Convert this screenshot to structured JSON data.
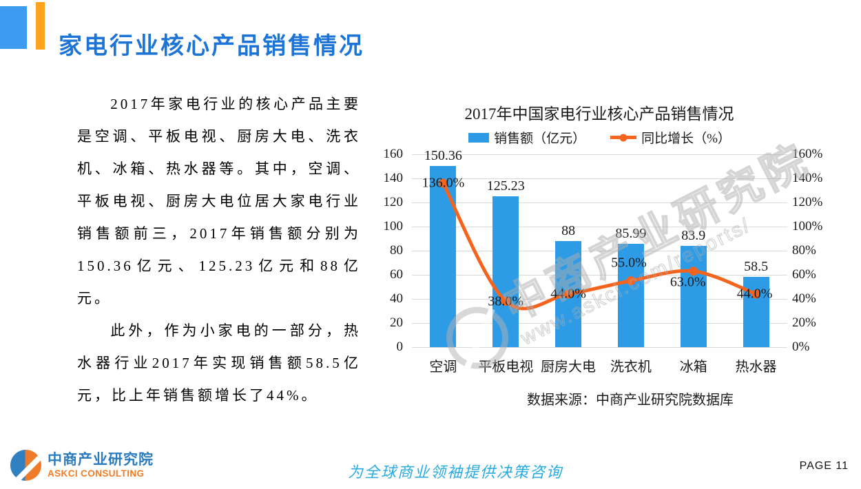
{
  "slide": {
    "title": "家电行业核心产品销售情况",
    "page_label": "PAGE 11",
    "footer_slogan": "为全球商业领袖提供决策咨询",
    "logo": {
      "cn": "中商产业研究院",
      "en": "ASKCI CONSULTING"
    }
  },
  "body": {
    "paragraph1": "2017年家电行业的核心产品主要是空调、平板电视、厨房大电、洗衣机、冰箱、热水器等。其中，空调、平板电视、厨房大电位居大家电行业销售额前三，2017年销售额分别为150.36亿元、125.23亿元和88亿元。",
    "paragraph2": "此外，作为小家电的一部分，热水器行业2017年实现销售额58.5亿元，比上年销售额增长了44%。"
  },
  "chart": {
    "source_note": "数据来源：中商产业研究院数据库",
    "watermark_text": "中商产业研究院",
    "watermark_url": "www.askci.com/reports/"
  },
  "chart_data": {
    "type": "bar",
    "title": "2017年中国家电行业核心产品销售情况",
    "categories": [
      "空调",
      "平板电视",
      "厨房大电",
      "洗衣机",
      "冰箱",
      "热水器"
    ],
    "series": [
      {
        "name": "销售额（亿元）",
        "type": "bar",
        "axis": "left",
        "values": [
          150.36,
          125.23,
          88,
          85.99,
          83.9,
          58.5
        ],
        "labels": [
          "150.36",
          "125.23",
          "88",
          "85.99",
          "83.9",
          "58.5"
        ],
        "color": "#2E9BE6"
      },
      {
        "name": "同比增长（%）",
        "type": "line",
        "axis": "right",
        "values": [
          136,
          38,
          44,
          55,
          63,
          44
        ],
        "labels": [
          "136.0%",
          "38.0%",
          "44.0%",
          "55.0%",
          "63.0%",
          "44.0%"
        ],
        "color": "#F4641E"
      }
    ],
    "left_axis": {
      "min": 0,
      "max": 160,
      "step": 20,
      "ticks": [
        "0",
        "20",
        "40",
        "60",
        "80",
        "100",
        "120",
        "140",
        "160"
      ]
    },
    "right_axis": {
      "min": 0,
      "max": 160,
      "step": 20,
      "ticks": [
        "0%",
        "20%",
        "40%",
        "60%",
        "80%",
        "100%",
        "120%",
        "140%",
        "160%"
      ]
    },
    "grid": true,
    "legend_position": "top"
  },
  "colors": {
    "bar": "#2E9BE6",
    "line": "#F4641E",
    "header_square": "#3D9BF0",
    "header_bar": "#FFA21D",
    "title_text": "#1B74D6",
    "gridline": "#D9D9D9",
    "footer_text": "#29ABE2",
    "logo_blue": "#2B7CBF",
    "logo_orange": "#F07D28"
  }
}
